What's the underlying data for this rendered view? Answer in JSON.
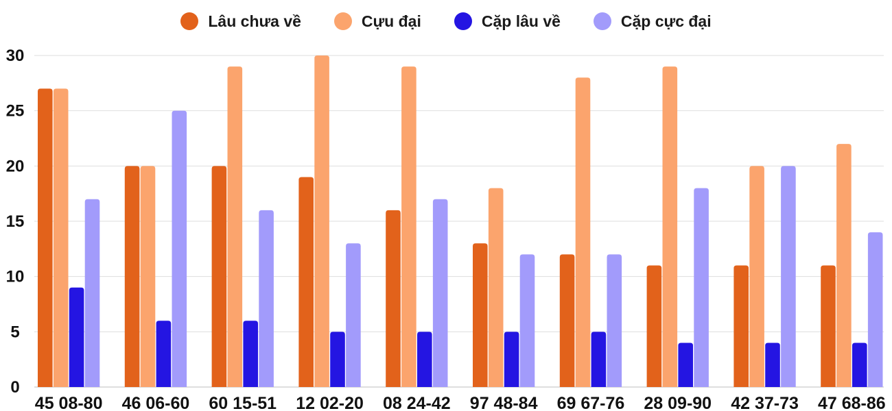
{
  "chart_data": {
    "type": "bar",
    "categories": [
      "45 08-80",
      "46 06-60",
      "60 15-51",
      "12 02-20",
      "08 24-42",
      "97 48-84",
      "69 67-76",
      "28 09-90",
      "42 37-73",
      "47 68-86"
    ],
    "series": [
      {
        "name": "Lâu chưa về",
        "color": "#e2621b",
        "values": [
          27,
          20,
          20,
          19,
          16,
          13,
          12,
          11,
          11,
          11
        ]
      },
      {
        "name": "Cựu đại",
        "color": "#fba46d",
        "values": [
          27,
          20,
          29,
          30,
          29,
          18,
          28,
          29,
          20,
          22
        ]
      },
      {
        "name": "Cặp lâu về",
        "color": "#2415e2",
        "values": [
          9,
          6,
          6,
          5,
          5,
          5,
          5,
          4,
          4,
          4
        ]
      },
      {
        "name": "Cặp cực đại",
        "color": "#a29bfb",
        "values": [
          17,
          25,
          16,
          13,
          17,
          12,
          12,
          18,
          20,
          14
        ]
      }
    ],
    "yticks": [
      "0",
      "5",
      "10",
      "15",
      "20",
      "25",
      "30"
    ],
    "ylim": [
      0,
      30
    ],
    "grid": true,
    "legend_position": "top-center"
  }
}
